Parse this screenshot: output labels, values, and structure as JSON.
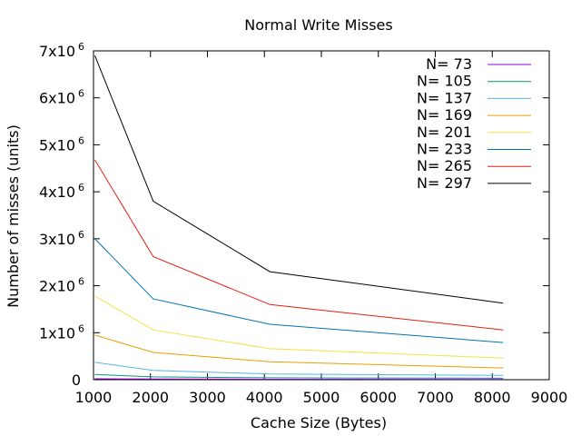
{
  "chart_data": {
    "type": "line",
    "title": "Normal Write Misses",
    "xlabel": "Cache Size (Bytes)",
    "ylabel": "Number of misses (units)",
    "xlim": [
      1000,
      9000
    ],
    "ylim": [
      0,
      7000000
    ],
    "xticks": [
      1000,
      2000,
      3000,
      4000,
      5000,
      6000,
      7000,
      8000,
      9000
    ],
    "xtick_labels": [
      "1000",
      "2000",
      "3000",
      "4000",
      "5000",
      "6000",
      "7000",
      "8000",
      "9000"
    ],
    "yticks": [
      {
        "value": 0,
        "mantissa": "0",
        "exponent": ""
      },
      {
        "value": 1000000,
        "mantissa": "1x10",
        "exponent": "6"
      },
      {
        "value": 2000000,
        "mantissa": "2x10",
        "exponent": "6"
      },
      {
        "value": 3000000,
        "mantissa": "3x10",
        "exponent": "6"
      },
      {
        "value": 4000000,
        "mantissa": "4x10",
        "exponent": "6"
      },
      {
        "value": 5000000,
        "mantissa": "5x10",
        "exponent": "6"
      },
      {
        "value": 6000000,
        "mantissa": "6x10",
        "exponent": "6"
      },
      {
        "value": 7000000,
        "mantissa": "7x10",
        "exponent": "6"
      }
    ],
    "legend_position": "top-right",
    "grid": false,
    "x": [
      1024,
      2048,
      4096,
      8192
    ],
    "series": [
      {
        "name": "N= 73",
        "color": "#9400d3",
        "values": [
          20000,
          15000,
          10000,
          8000
        ]
      },
      {
        "name": "N= 105",
        "color": "#009e73",
        "values": [
          110000,
          60000,
          40000,
          30000
        ]
      },
      {
        "name": "N= 137",
        "color": "#56b4e9",
        "values": [
          370000,
          200000,
          120000,
          90000
        ]
      },
      {
        "name": "N= 169",
        "color": "#e69f00",
        "values": [
          950000,
          580000,
          380000,
          250000
        ]
      },
      {
        "name": "N= 201",
        "color": "#f0e442",
        "values": [
          1780000,
          1060000,
          660000,
          460000
        ]
      },
      {
        "name": "N= 233",
        "color": "#0072b2",
        "values": [
          3000000,
          1720000,
          1180000,
          790000
        ]
      },
      {
        "name": "N= 265",
        "color": "#e51e10",
        "values": [
          4680000,
          2620000,
          1600000,
          1060000
        ]
      },
      {
        "name": "N= 297",
        "color": "#000000",
        "values": [
          6900000,
          3800000,
          2300000,
          1630000
        ]
      }
    ]
  }
}
